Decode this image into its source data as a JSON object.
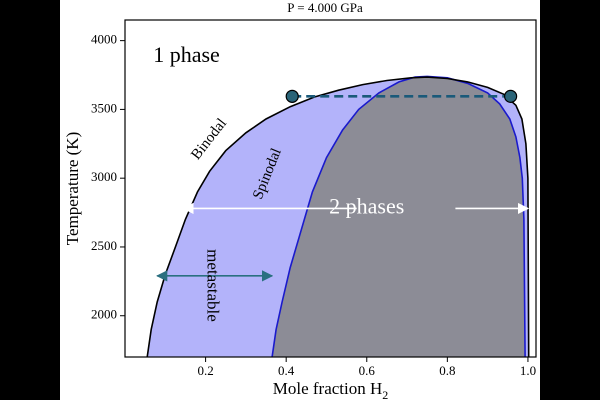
{
  "chart_data": {
    "type": "area",
    "title": "P = 4.000 GPa",
    "xlabel_main": "Mole fraction H",
    "xlabel_sub": "2",
    "ylabel": "Temperature (K)",
    "xlim": [
      0.0,
      1.02
    ],
    "ylim": [
      1700,
      4150
    ],
    "xticks": [
      0.2,
      0.4,
      0.6,
      0.8,
      1.0
    ],
    "xtick_labels": [
      "0.2",
      "0.4",
      "0.6",
      "0.8",
      "1.0"
    ],
    "yticks": [
      2000,
      2500,
      3000,
      3500,
      4000
    ],
    "ytick_labels": [
      "2000",
      "2500",
      "3000",
      "3500",
      "4000"
    ],
    "grid": false,
    "colors": {
      "background": "#000000",
      "plot_face": "#ffffff",
      "binodal_fill": "#b3b3fa",
      "spinodal_fill": "#8c8c96",
      "binodal_line": "#000000",
      "spinodal_line": "#1a1acc",
      "tie_line": "#1a5a7a",
      "arrow_teal": "#2a7080",
      "arrow_white": "#ffffff"
    },
    "binodal": {
      "name": "Binodal",
      "x": [
        0.055,
        0.065,
        0.08,
        0.1,
        0.125,
        0.15,
        0.18,
        0.21,
        0.25,
        0.3,
        0.35,
        0.41,
        0.47,
        0.53,
        0.59,
        0.65,
        0.71,
        0.75,
        0.8,
        0.85,
        0.9,
        0.94,
        0.97,
        0.985,
        0.995,
        1.0,
        1.002
      ],
      "y": [
        1700,
        1900,
        2100,
        2300,
        2500,
        2700,
        2900,
        3050,
        3200,
        3330,
        3430,
        3520,
        3590,
        3640,
        3680,
        3710,
        3730,
        3735,
        3725,
        3700,
        3660,
        3610,
        3530,
        3430,
        3250,
        3000,
        1700
      ]
    },
    "spinodal": {
      "name": "Spinodal",
      "x": [
        0.365,
        0.375,
        0.39,
        0.41,
        0.435,
        0.465,
        0.5,
        0.54,
        0.58,
        0.63,
        0.68,
        0.72,
        0.75,
        0.8,
        0.85,
        0.9,
        0.93,
        0.955,
        0.97,
        0.98,
        0.986,
        0.99,
        0.993
      ],
      "y": [
        1700,
        1900,
        2100,
        2350,
        2600,
        2900,
        3150,
        3350,
        3500,
        3620,
        3700,
        3735,
        3740,
        3730,
        3690,
        3620,
        3540,
        3430,
        3300,
        3150,
        3000,
        2700,
        1700
      ]
    },
    "tie_line": {
      "y": 3595,
      "x_left": 0.415,
      "x_right": 0.957
    },
    "annotations": {
      "one_phase": {
        "text": "1 phase",
        "x": 0.07,
        "y": 3880
      },
      "two_phases": {
        "text": "2 phases",
        "x": 0.6,
        "y": 2780
      },
      "binodal_label": {
        "text": "Binodal",
        "x": 0.21,
        "y": 3280,
        "angle": -52
      },
      "spinodal_label": {
        "text": "Spinodal",
        "x": 0.355,
        "y": 3030,
        "angle": -68
      },
      "metastable_label": {
        "text": "metastable",
        "x": 0.215,
        "y": 2220,
        "angle": 90
      }
    },
    "arrows": {
      "two_phase_span": {
        "x_from": 0.575,
        "x_to": 0.145,
        "x2_from": 0.82,
        "x2_to": 1.0,
        "y": 2780
      },
      "metastable_span": {
        "x_from": 0.08,
        "x_to": 0.365,
        "y": 2290
      }
    }
  }
}
